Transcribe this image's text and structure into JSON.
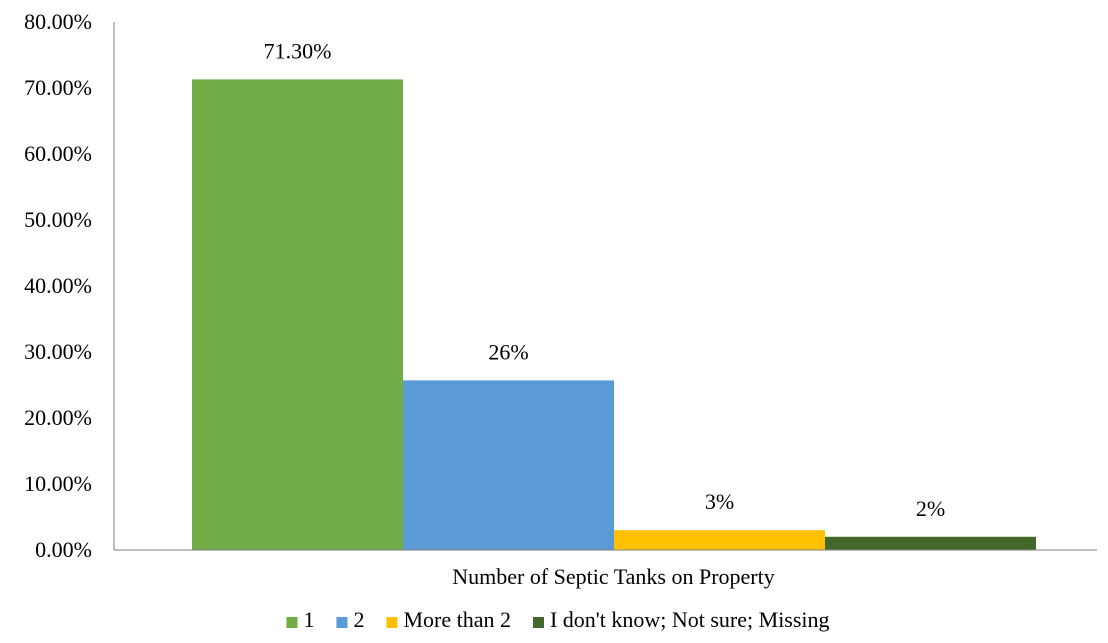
{
  "chart_data": {
    "type": "bar",
    "xlabel": "Number of Septic Tanks on Property",
    "ylabel": "",
    "ylim": [
      0,
      80
    ],
    "yticks": [
      0,
      10,
      20,
      30,
      40,
      50,
      60,
      70,
      80
    ],
    "ytick_labels": [
      "0.00%",
      "10.00%",
      "20.00%",
      "30.00%",
      "40.00%",
      "50.00%",
      "60.00%",
      "70.00%",
      "80.00%"
    ],
    "grid": false,
    "legend_position": "bottom",
    "categories": [
      "Number of Septic Tanks on Property"
    ],
    "series": [
      {
        "name": "1",
        "values": [
          71.3
        ],
        "label": "71.30%",
        "color": "#70AD47"
      },
      {
        "name": "2",
        "values": [
          25.7
        ],
        "label": "26%",
        "color": "#5B9BD5"
      },
      {
        "name": "More than 2",
        "values": [
          3
        ],
        "label": "3%",
        "color": "#FFC000"
      },
      {
        "name": "I don't know; Not sure; Missing",
        "values": [
          2
        ],
        "label": "2%",
        "color": "#43682B"
      }
    ],
    "axis_color": "#7F7F7F"
  }
}
